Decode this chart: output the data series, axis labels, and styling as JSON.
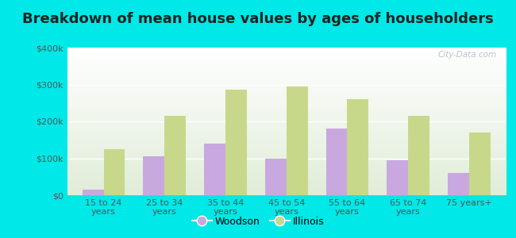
{
  "categories": [
    "15 to 24\nyears",
    "25 to 34\nyears",
    "35 to 44\nyears",
    "45 to 54\nyears",
    "55 to 64\nyears",
    "65 to 74\nyears",
    "75 years+"
  ],
  "woodson_values": [
    15000,
    105000,
    140000,
    100000,
    180000,
    95000,
    60000
  ],
  "illinois_values": [
    125000,
    215000,
    285000,
    295000,
    260000,
    215000,
    170000
  ],
  "woodson_color": "#c9a8e0",
  "illinois_color": "#c8d88a",
  "title": "Breakdown of mean house values by ages of householders",
  "title_fontsize": 13,
  "legend_labels": [
    "Woodson",
    "Illinois"
  ],
  "ylim": [
    0,
    400000
  ],
  "yticks": [
    0,
    100000,
    200000,
    300000,
    400000
  ],
  "ytick_labels": [
    "$0",
    "$100k",
    "$200k",
    "$300k",
    "$400k"
  ],
  "background_outer": "#00e8e8",
  "bar_width": 0.35,
  "watermark": "City-Data.com"
}
